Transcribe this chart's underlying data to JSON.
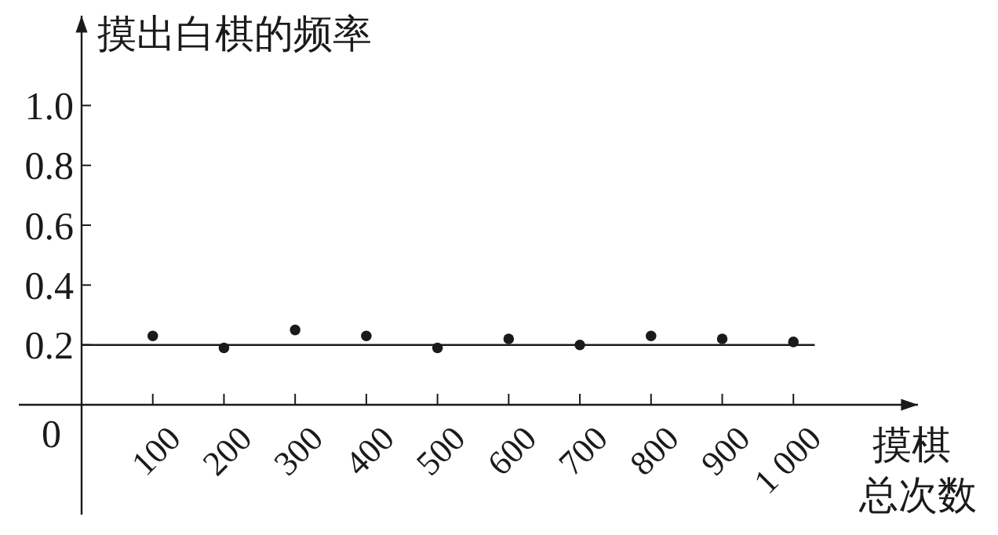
{
  "chart_data": {
    "type": "scatter",
    "ylabel": "摸出白棋的频率",
    "xlabel": "摸棋总次数",
    "x": [
      100,
      200,
      300,
      400,
      500,
      600,
      700,
      800,
      900,
      1000
    ],
    "values": [
      0.23,
      0.19,
      0.25,
      0.23,
      0.19,
      0.22,
      0.2,
      0.23,
      0.22,
      0.21
    ],
    "color": "#1a1a1a",
    "marker": "circle",
    "grid": false,
    "xlim": [
      0,
      1175
    ],
    "ylim": [
      0,
      1.3
    ],
    "xticks": [
      100,
      200,
      300,
      400,
      500,
      600,
      700,
      800,
      900,
      {
        "value": 1000,
        "label": "1 000"
      }
    ],
    "yticks": [
      0,
      0.2,
      0.4,
      0.6,
      0.8,
      {
        "value": 1,
        "label": "1.0"
      }
    ],
    "ref_lines": [
      {
        "axis": "y",
        "value": 0.2,
        "label": null
      }
    ]
  }
}
